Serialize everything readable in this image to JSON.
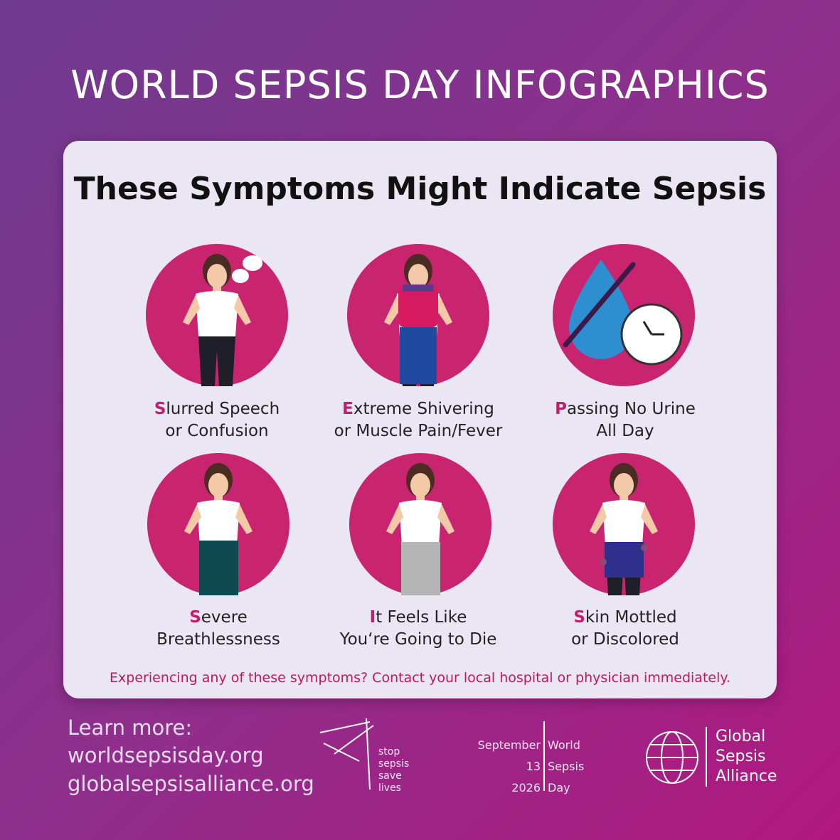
{
  "header": {
    "title": "WORLD SEPSIS DAY INFOGRAPHICS"
  },
  "card": {
    "heading": "These Symptoms Might Indicate Sepsis",
    "symptoms": [
      {
        "line1": "Slurred Speech",
        "line2": "or Confusion"
      },
      {
        "line1": "Extreme Shivering",
        "line2": "or Muscle Pain/Fever"
      },
      {
        "line1": "Passing No Urine",
        "line2": "All Day"
      },
      {
        "line1": "Severe",
        "line2": "Breathlessness"
      },
      {
        "line1": "It Feels Like",
        "line2": "You‘re Going to Die"
      },
      {
        "line1": "Skin Mottled",
        "line2": "or Discolored"
      }
    ],
    "footnote": "Experiencing any of these symptoms? Contact your local hospital or physician immediately."
  },
  "footer": {
    "learn_more": [
      "Learn more:",
      "worldsepsisday.org",
      "globalsepsisalliance.org"
    ],
    "slogan": [
      "stop",
      "sepsis",
      "save",
      "lives"
    ],
    "date": [
      "September",
      "13",
      "2026"
    ],
    "event": [
      "World",
      "Sepsis",
      "Day"
    ],
    "alliance": [
      "Global",
      "Sepsis",
      "Alliance"
    ]
  }
}
